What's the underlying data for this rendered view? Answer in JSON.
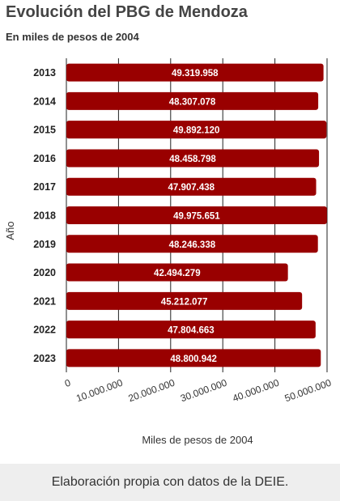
{
  "header": {
    "title": "Evolución del PBG de Mendoza",
    "subtitle": "En miles de pesos de 2004"
  },
  "footer": {
    "text": "Elaboración propia con datos de la DEIE."
  },
  "colors": {
    "bar": "#990000",
    "bar_label": "#ffffff",
    "grid": "#222222"
  },
  "chart_data": {
    "type": "bar",
    "orientation": "horizontal",
    "title": "Evolución del PBG de Mendoza",
    "subtitle": "En miles de pesos de 2004",
    "xlabel": "Miles de pesos de 2004",
    "ylabel": "Año",
    "xlim": [
      0,
      50000000
    ],
    "grid": true,
    "categories": [
      "2013",
      "2014",
      "2015",
      "2016",
      "2017",
      "2018",
      "2019",
      "2020",
      "2021",
      "2022",
      "2023"
    ],
    "values": [
      49319958,
      48307078,
      49892120,
      48458798,
      47907438,
      49975651,
      48246338,
      42494279,
      45212077,
      47804663,
      48800942
    ],
    "value_labels": [
      "49.319.958",
      "48.307.078",
      "49.892.120",
      "48.458.798",
      "47.907.438",
      "49.975.651",
      "48.246.338",
      "42.494.279",
      "45.212.077",
      "47.804.663",
      "48.800.942"
    ],
    "ticks": [
      0,
      10000000,
      20000000,
      30000000,
      40000000,
      50000000
    ],
    "tick_labels": [
      "0",
      "10.000.000",
      "20.000.000",
      "30.000.000",
      "40.000.000",
      "50.000.000"
    ]
  }
}
